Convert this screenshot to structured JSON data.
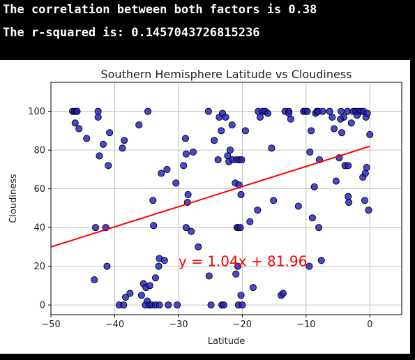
{
  "console": {
    "line1": "The correlation between both factors is 0.38",
    "line2": "The r-squared is: 0.1457043726815236"
  },
  "colors": {
    "point_fill": "#2020c8",
    "point_edge": "#000000",
    "regression": "#ff0000",
    "grid": "#b0b0b0"
  },
  "chart_data": {
    "type": "scatter",
    "title": "Southern Hemisphere Latitude vs Cloudiness",
    "xlabel": "Latitude",
    "ylabel": "Cloudiness",
    "xlim": [
      -50,
      5
    ],
    "ylim": [
      -5,
      115
    ],
    "xticks": [
      "−50",
      "−40",
      "−30",
      "−20",
      "−10",
      "0"
    ],
    "xtick_values": [
      -50,
      -40,
      -30,
      -20,
      -10,
      0
    ],
    "yticks": [
      "0",
      "20",
      "40",
      "60",
      "80",
      "100"
    ],
    "ytick_values": [
      0,
      20,
      40,
      60,
      80,
      100
    ],
    "grid": true,
    "regression": {
      "slope": 1.04,
      "intercept": 81.96,
      "x_range": [
        -50,
        0
      ]
    },
    "annotation": {
      "text": "y = 1.04x + 81.96",
      "x": -30,
      "y": 20
    },
    "points": [
      [
        -46.6,
        100
      ],
      [
        -46.3,
        100
      ],
      [
        -46.0,
        100
      ],
      [
        -45.9,
        100
      ],
      [
        -46.2,
        94
      ],
      [
        -45.6,
        91
      ],
      [
        -44.4,
        86
      ],
      [
        -43.2,
        13
      ],
      [
        -43.0,
        40
      ],
      [
        -42.6,
        100
      ],
      [
        -42.6,
        97
      ],
      [
        -42.4,
        77
      ],
      [
        -41.8,
        83
      ],
      [
        -41.4,
        40
      ],
      [
        -41.2,
        20
      ],
      [
        -41.0,
        72
      ],
      [
        -40.8,
        89
      ],
      [
        -39.3,
        0
      ],
      [
        -38.6,
        0
      ],
      [
        -38.3,
        4
      ],
      [
        -38.8,
        81
      ],
      [
        -38.5,
        85
      ],
      [
        -37.6,
        6
      ],
      [
        -36.2,
        93
      ],
      [
        -35.8,
        5
      ],
      [
        -35.5,
        11
      ],
      [
        -35.2,
        0
      ],
      [
        -34.8,
        100
      ],
      [
        -35.1,
        9
      ],
      [
        -34.9,
        2
      ],
      [
        -34.5,
        10
      ],
      [
        -34.6,
        0
      ],
      [
        -34.2,
        0
      ],
      [
        -33.6,
        0
      ],
      [
        -33.0,
        0
      ],
      [
        -34.0,
        54
      ],
      [
        -33.9,
        41
      ],
      [
        -33.6,
        14
      ],
      [
        -33.0,
        24
      ],
      [
        -33.1,
        20
      ],
      [
        -32.7,
        68
      ],
      [
        -32.2,
        23
      ],
      [
        -31.8,
        70
      ],
      [
        -31.6,
        0
      ],
      [
        -30.2,
        0
      ],
      [
        -30.4,
        63
      ],
      [
        -28.9,
        86
      ],
      [
        -28.8,
        78
      ],
      [
        -28.5,
        57
      ],
      [
        -28.6,
        53
      ],
      [
        -28.8,
        40
      ],
      [
        -29.2,
        72
      ],
      [
        -28.0,
        38
      ],
      [
        -27.7,
        79
      ],
      [
        -26.9,
        30
      ],
      [
        -25.3,
        100
      ],
      [
        -25.2,
        15
      ],
      [
        -24.9,
        0
      ],
      [
        -24.4,
        85
      ],
      [
        -23.8,
        75
      ],
      [
        -23.6,
        97
      ],
      [
        -23.3,
        90
      ],
      [
        -23.1,
        99
      ],
      [
        -23.2,
        0
      ],
      [
        -22.9,
        0
      ],
      [
        -22.6,
        97
      ],
      [
        -22.3,
        77
      ],
      [
        -22.1,
        74
      ],
      [
        -21.9,
        80
      ],
      [
        -21.6,
        93
      ],
      [
        -21.5,
        75
      ],
      [
        -21.1,
        63
      ],
      [
        -20.9,
        75
      ],
      [
        -20.8,
        40
      ],
      [
        -20.7,
        40
      ],
      [
        -20.3,
        40
      ],
      [
        -21.0,
        16
      ],
      [
        -20.7,
        20
      ],
      [
        -20.5,
        62
      ],
      [
        -20.4,
        75
      ],
      [
        -20.1,
        75
      ],
      [
        -20.2,
        57
      ],
      [
        -20.6,
        0
      ],
      [
        -20.2,
        5
      ],
      [
        -20.0,
        0
      ],
      [
        -19.5,
        90
      ],
      [
        -18.8,
        43
      ],
      [
        -18.3,
        9
      ],
      [
        -17.6,
        49
      ],
      [
        -17.5,
        100
      ],
      [
        -17.2,
        97
      ],
      [
        -16.8,
        100
      ],
      [
        -16.4,
        100
      ],
      [
        -16.0,
        99
      ],
      [
        -15.4,
        81
      ],
      [
        -15.1,
        54
      ],
      [
        -13.9,
        5
      ],
      [
        -13.6,
        6
      ],
      [
        -13.3,
        100
      ],
      [
        -12.7,
        100
      ],
      [
        -12.4,
        96
      ],
      [
        -12.7,
        99
      ],
      [
        -11.2,
        51
      ],
      [
        -10.4,
        100
      ],
      [
        -10.1,
        100
      ],
      [
        -9.8,
        100
      ],
      [
        -9.5,
        20
      ],
      [
        -9.4,
        79
      ],
      [
        -9.2,
        90
      ],
      [
        -8.7,
        61
      ],
      [
        -8.5,
        99
      ],
      [
        -8.3,
        100
      ],
      [
        -8.1,
        100
      ],
      [
        -7.9,
        75
      ],
      [
        -7.4,
        100
      ],
      [
        -7.6,
        23
      ],
      [
        -6.3,
        100
      ],
      [
        -5.9,
        97
      ],
      [
        -5.6,
        91
      ],
      [
        -5.3,
        64
      ],
      [
        -4.8,
        76
      ],
      [
        -4.5,
        100
      ],
      [
        -4.4,
        89
      ],
      [
        -4.1,
        97
      ],
      [
        -3.9,
        72
      ],
      [
        -3.5,
        100
      ],
      [
        -3.4,
        72
      ],
      [
        -3.4,
        56
      ],
      [
        -3.3,
        53
      ],
      [
        -2.9,
        94
      ],
      [
        -2.6,
        100
      ],
      [
        -2.2,
        100
      ],
      [
        -1.8,
        100
      ],
      [
        -1.4,
        100
      ],
      [
        -1.1,
        66
      ],
      [
        -1.0,
        100
      ],
      [
        -0.8,
        54
      ],
      [
        -0.7,
        68
      ],
      [
        -0.5,
        71
      ],
      [
        -0.6,
        97
      ],
      [
        -0.4,
        99
      ],
      [
        -0.2,
        49
      ],
      [
        0.0,
        88
      ],
      [
        -9.0,
        45
      ],
      [
        -8.0,
        40
      ],
      [
        -2.0,
        98
      ],
      [
        -4.6,
        96
      ]
    ]
  }
}
